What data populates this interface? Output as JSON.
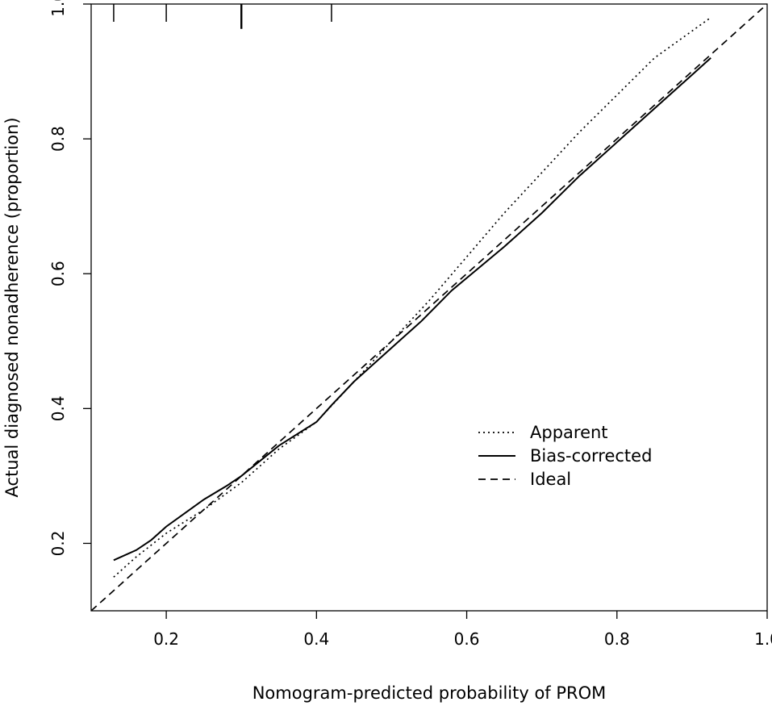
{
  "chart_data": {
    "type": "line",
    "title": "",
    "xlabel": "Nomogram-predicted probability of PROM",
    "ylabel": "Actual diagnosed nonadherence (proportion)",
    "xlim": [
      0.1,
      1.0
    ],
    "ylim": [
      0.1,
      1.0
    ],
    "x_ticks": [
      0.2,
      0.4,
      0.6,
      0.8,
      1.0
    ],
    "x_tick_labels": [
      "0.2",
      "0.4",
      "0.6",
      "0.8",
      "1.0"
    ],
    "y_ticks": [
      0.2,
      0.4,
      0.6,
      0.8,
      1.0
    ],
    "y_tick_labels": [
      "0.2",
      "0.4",
      "0.6",
      "0.8",
      "1.0"
    ],
    "grid": false,
    "legend_position": "center-right",
    "series": [
      {
        "name": "Apparent",
        "linestyle": "dotted",
        "x": [
          0.13,
          0.16,
          0.2,
          0.25,
          0.3,
          0.35,
          0.4,
          0.45,
          0.5,
          0.55,
          0.6,
          0.65,
          0.7,
          0.75,
          0.8,
          0.85,
          0.9,
          0.925
        ],
        "y": [
          0.15,
          0.18,
          0.215,
          0.25,
          0.29,
          0.34,
          0.38,
          0.44,
          0.5,
          0.56,
          0.625,
          0.69,
          0.75,
          0.81,
          0.865,
          0.92,
          0.96,
          0.98
        ]
      },
      {
        "name": "Bias-corrected",
        "linestyle": "solid",
        "x": [
          0.13,
          0.16,
          0.18,
          0.2,
          0.25,
          0.28,
          0.3,
          0.35,
          0.4,
          0.42,
          0.45,
          0.5,
          0.54,
          0.58,
          0.65,
          0.7,
          0.75,
          0.8,
          0.85,
          0.9,
          0.925
        ],
        "y": [
          0.175,
          0.19,
          0.205,
          0.225,
          0.265,
          0.285,
          0.3,
          0.345,
          0.38,
          0.405,
          0.44,
          0.49,
          0.53,
          0.575,
          0.64,
          0.69,
          0.745,
          0.795,
          0.845,
          0.895,
          0.92
        ]
      },
      {
        "name": "Ideal",
        "linestyle": "dashed",
        "x": [
          0.1,
          1.0
        ],
        "y": [
          0.1,
          1.0
        ]
      }
    ],
    "rug_ticks": {
      "side": "top",
      "x": [
        0.13,
        0.2,
        0.3,
        0.42
      ],
      "heights": [
        1,
        1,
        1.4,
        1
      ]
    }
  }
}
